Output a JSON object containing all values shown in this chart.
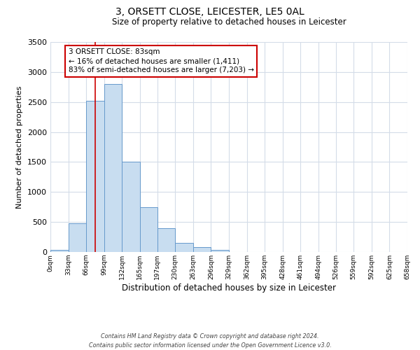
{
  "title": "3, ORSETT CLOSE, LEICESTER, LE5 0AL",
  "subtitle": "Size of property relative to detached houses in Leicester",
  "xlabel": "Distribution of detached houses by size in Leicester",
  "ylabel": "Number of detached properties",
  "bins": [
    0,
    33,
    66,
    99,
    132,
    165,
    197,
    230,
    263,
    296,
    329,
    362,
    395,
    428,
    461,
    494,
    526,
    559,
    592,
    625,
    658
  ],
  "bin_labels": [
    "0sqm",
    "33sqm",
    "66sqm",
    "99sqm",
    "132sqm",
    "165sqm",
    "197sqm",
    "230sqm",
    "263sqm",
    "296sqm",
    "329sqm",
    "362sqm",
    "395sqm",
    "428sqm",
    "461sqm",
    "494sqm",
    "526sqm",
    "559sqm",
    "592sqm",
    "625sqm",
    "658sqm"
  ],
  "counts": [
    30,
    480,
    2520,
    2800,
    1510,
    750,
    400,
    150,
    80,
    40,
    0,
    0,
    0,
    0,
    0,
    0,
    0,
    0,
    0,
    0
  ],
  "bar_color": "#c8ddf0",
  "bar_edge_color": "#6699cc",
  "ylim": [
    0,
    3500
  ],
  "yticks": [
    0,
    500,
    1000,
    1500,
    2000,
    2500,
    3000,
    3500
  ],
  "vline_x": 83,
  "vline_color": "#cc0000",
  "annotation_text": "3 ORSETT CLOSE: 83sqm\n← 16% of detached houses are smaller (1,411)\n83% of semi-detached houses are larger (7,203) →",
  "annotation_box_color": "#ffffff",
  "annotation_box_edgecolor": "#cc0000",
  "footer_line1": "Contains HM Land Registry data © Crown copyright and database right 2024.",
  "footer_line2": "Contains public sector information licensed under the Open Government Licence v3.0.",
  "background_color": "#ffffff",
  "grid_color": "#d4dce8"
}
